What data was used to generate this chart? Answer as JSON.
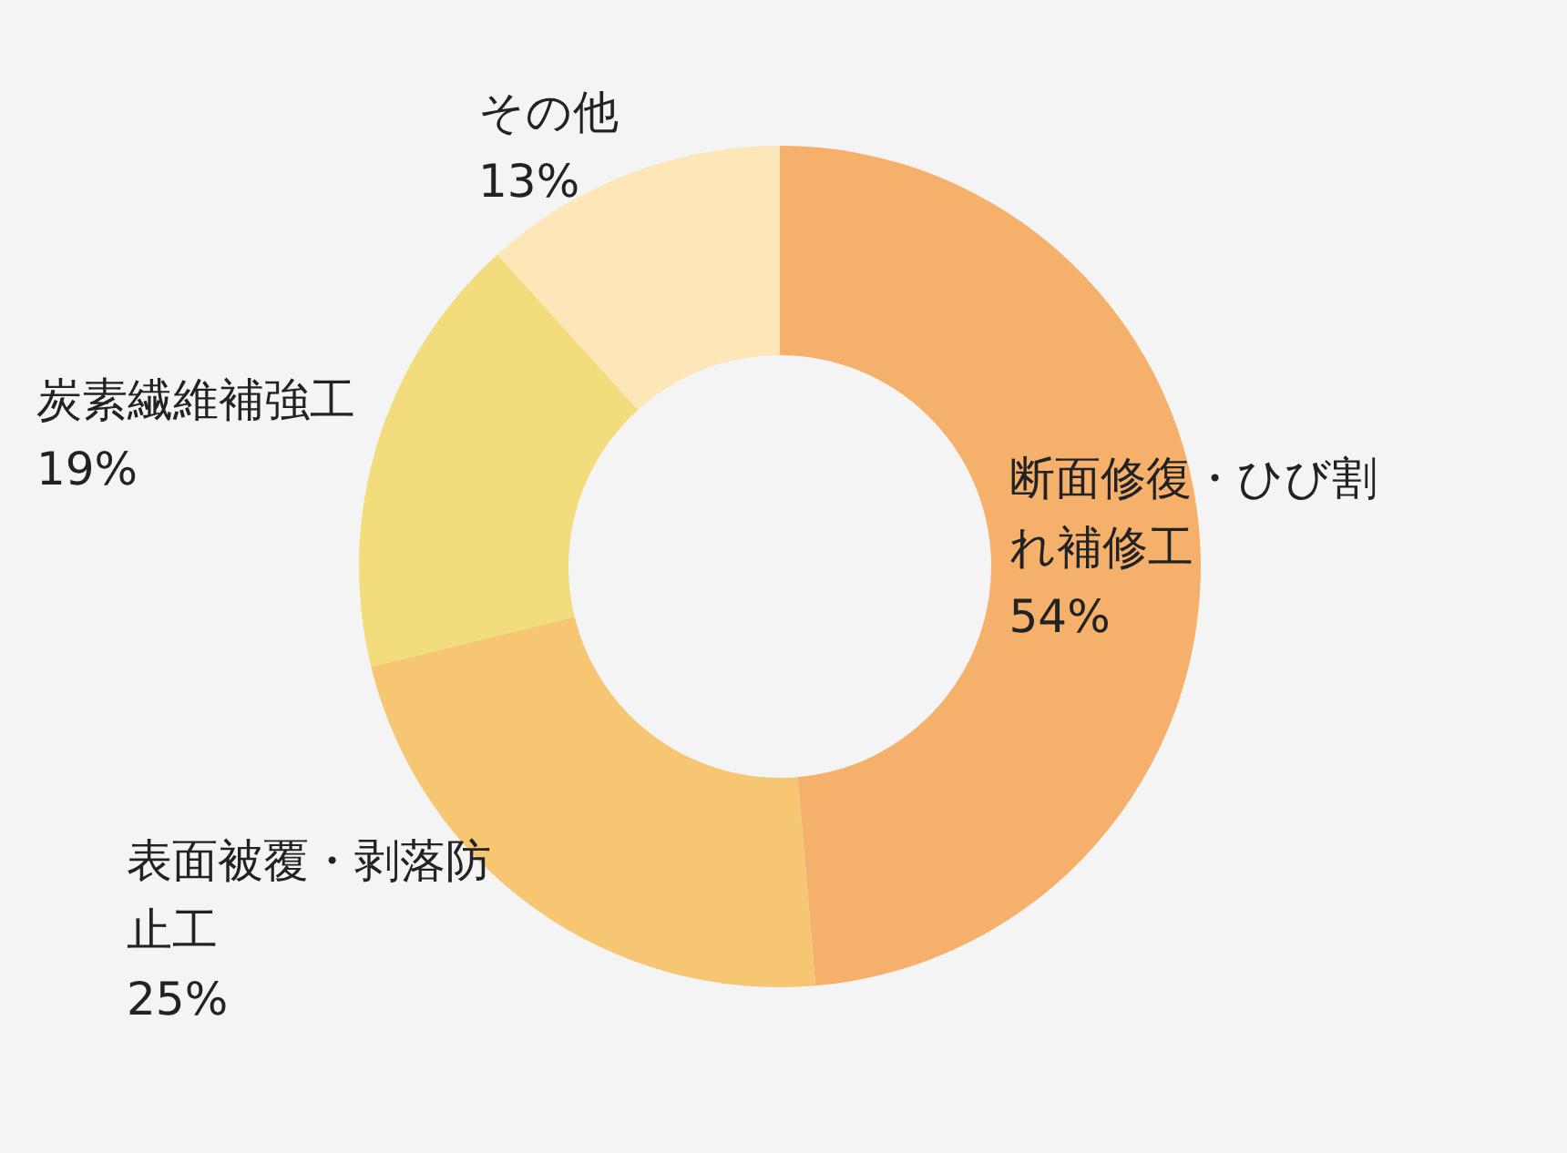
{
  "chart_data": {
    "type": "donut",
    "categories": [
      "断面修復・ひび割れ補修工",
      "表面被覆・剥落防止工",
      "炭素繊維補強工",
      "その他"
    ],
    "values": [
      54,
      25,
      19,
      13
    ],
    "value_labels": [
      "54%",
      "25%",
      "19%",
      "13%"
    ],
    "colors": [
      "#f5b06b",
      "#f7c672",
      "#f3dc7c",
      "#fde6b8"
    ]
  }
}
